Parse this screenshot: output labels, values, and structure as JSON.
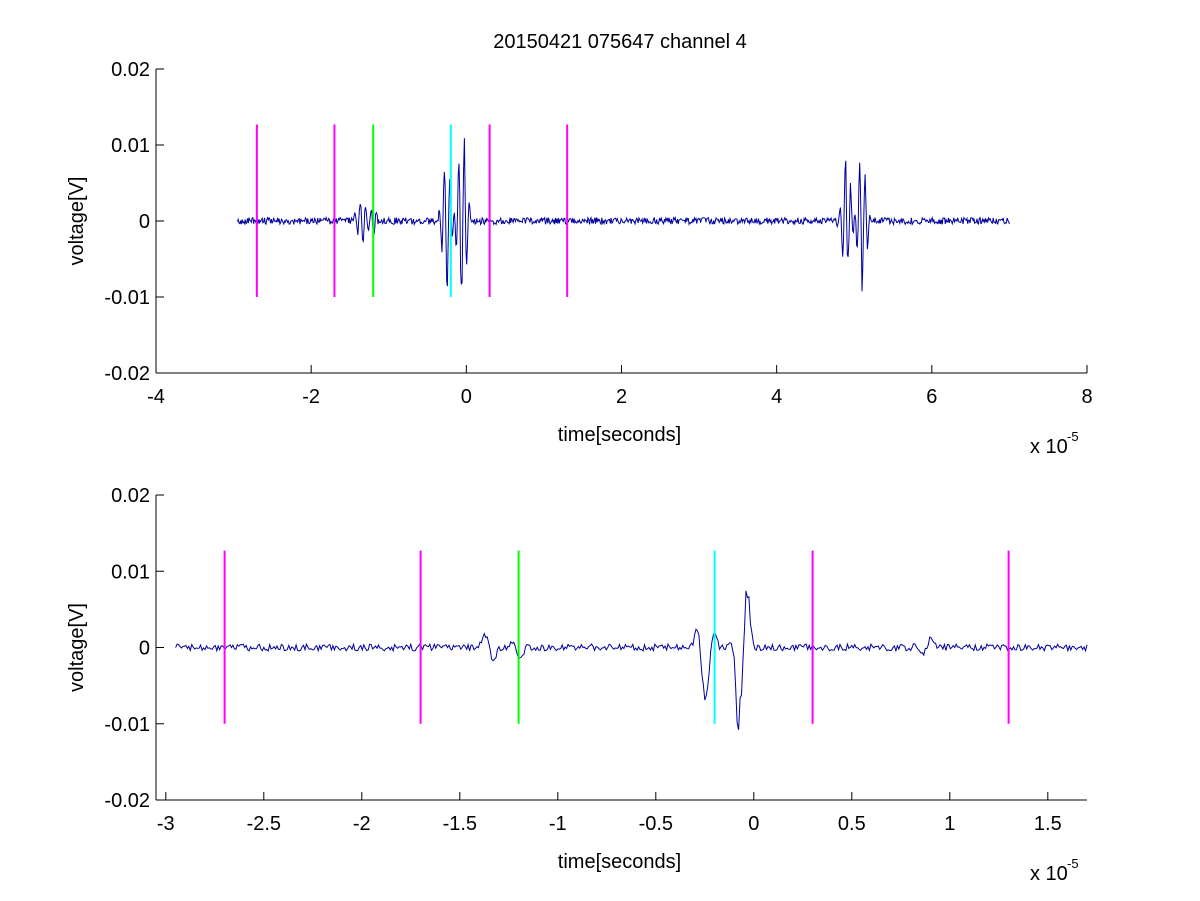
{
  "title": "20150421 075647 channel 4",
  "chart_data": [
    {
      "type": "line",
      "title": "20150421 075647 channel 4",
      "xlabel": "time[seconds]",
      "ylabel": "voltage[V]",
      "x_multiplier_label": "x 10",
      "x_multiplier_exp": "-5",
      "xlim": [
        -4,
        8
      ],
      "ylim": [
        -0.02,
        0.02
      ],
      "xticks": [
        -4,
        -2,
        0,
        2,
        4,
        6,
        8
      ],
      "xtick_labels": [
        "-4",
        "-2",
        "0",
        "2",
        "4",
        "6",
        "8"
      ],
      "yticks": [
        -0.02,
        -0.01,
        0,
        0.01,
        0.02
      ],
      "ytick_labels": [
        "-0.02",
        "-0.01",
        "0",
        "0.01",
        "0.02"
      ],
      "grid": false,
      "trace": {
        "color": "#0000a0",
        "x_range": [
          -2.95,
          7.0
        ],
        "bursts": [
          {
            "x": -1.35,
            "amp": 0.0025
          },
          {
            "x": -1.2,
            "amp": 0.0015
          },
          {
            "x": -0.25,
            "amp": 0.008
          },
          {
            "x": -0.05,
            "amp": 0.011
          },
          {
            "x": 4.9,
            "amp": 0.0075
          },
          {
            "x": 5.1,
            "amp": 0.0085
          }
        ]
      },
      "vlines": [
        {
          "x": -2.7,
          "color": "#ff00ff",
          "y": [
            -0.01,
            0.0127
          ]
        },
        {
          "x": -1.7,
          "color": "#ff00ff",
          "y": [
            -0.01,
            0.0127
          ]
        },
        {
          "x": -1.2,
          "color": "#00ff00",
          "y": [
            -0.01,
            0.0127
          ]
        },
        {
          "x": -0.2,
          "color": "#00ffff",
          "y": [
            -0.01,
            0.0127
          ]
        },
        {
          "x": 0.3,
          "color": "#ff00ff",
          "y": [
            -0.01,
            0.0127
          ]
        },
        {
          "x": 1.3,
          "color": "#ff00ff",
          "y": [
            -0.01,
            0.0127
          ]
        }
      ]
    },
    {
      "type": "line",
      "xlabel": "time[seconds]",
      "ylabel": "voltage[V]",
      "x_multiplier_label": "x 10",
      "x_multiplier_exp": "-5",
      "xlim": [
        -3.05,
        1.7
      ],
      "ylim": [
        -0.02,
        0.02
      ],
      "xticks": [
        -3,
        -2.5,
        -2,
        -1.5,
        -1,
        -0.5,
        0,
        0.5,
        1,
        1.5
      ],
      "xtick_labels": [
        "-3",
        "-2.5",
        "-2",
        "-1.5",
        "-1",
        "-0.5",
        "0",
        "0.5",
        "1",
        "1.5"
      ],
      "yticks": [
        -0.02,
        -0.01,
        0,
        0.01,
        0.02
      ],
      "ytick_labels": [
        "-0.02",
        "-0.01",
        "0",
        "0.01",
        "0.02"
      ],
      "grid": false,
      "trace": {
        "color": "#0000a0",
        "x_range": [
          -2.95,
          1.7
        ],
        "bursts": [
          {
            "x": -1.35,
            "amp": 0.0028
          },
          {
            "x": -1.2,
            "amp": 0.0015
          },
          {
            "x": -0.25,
            "amp": 0.0085
          },
          {
            "x": -0.06,
            "amp": 0.0115
          },
          {
            "x": 0.88,
            "amp": 0.0015
          }
        ]
      },
      "vlines": [
        {
          "x": -2.7,
          "color": "#ff00ff",
          "y": [
            -0.01,
            0.0127
          ]
        },
        {
          "x": -1.7,
          "color": "#ff00ff",
          "y": [
            -0.01,
            0.0127
          ]
        },
        {
          "x": -1.2,
          "color": "#00ff00",
          "y": [
            -0.01,
            0.0127
          ]
        },
        {
          "x": -0.2,
          "color": "#00ffff",
          "y": [
            -0.01,
            0.0127
          ]
        },
        {
          "x": 0.3,
          "color": "#ff00ff",
          "y": [
            -0.01,
            0.0127
          ]
        },
        {
          "x": 1.3,
          "color": "#ff00ff",
          "y": [
            -0.01,
            0.0127
          ]
        }
      ]
    }
  ]
}
